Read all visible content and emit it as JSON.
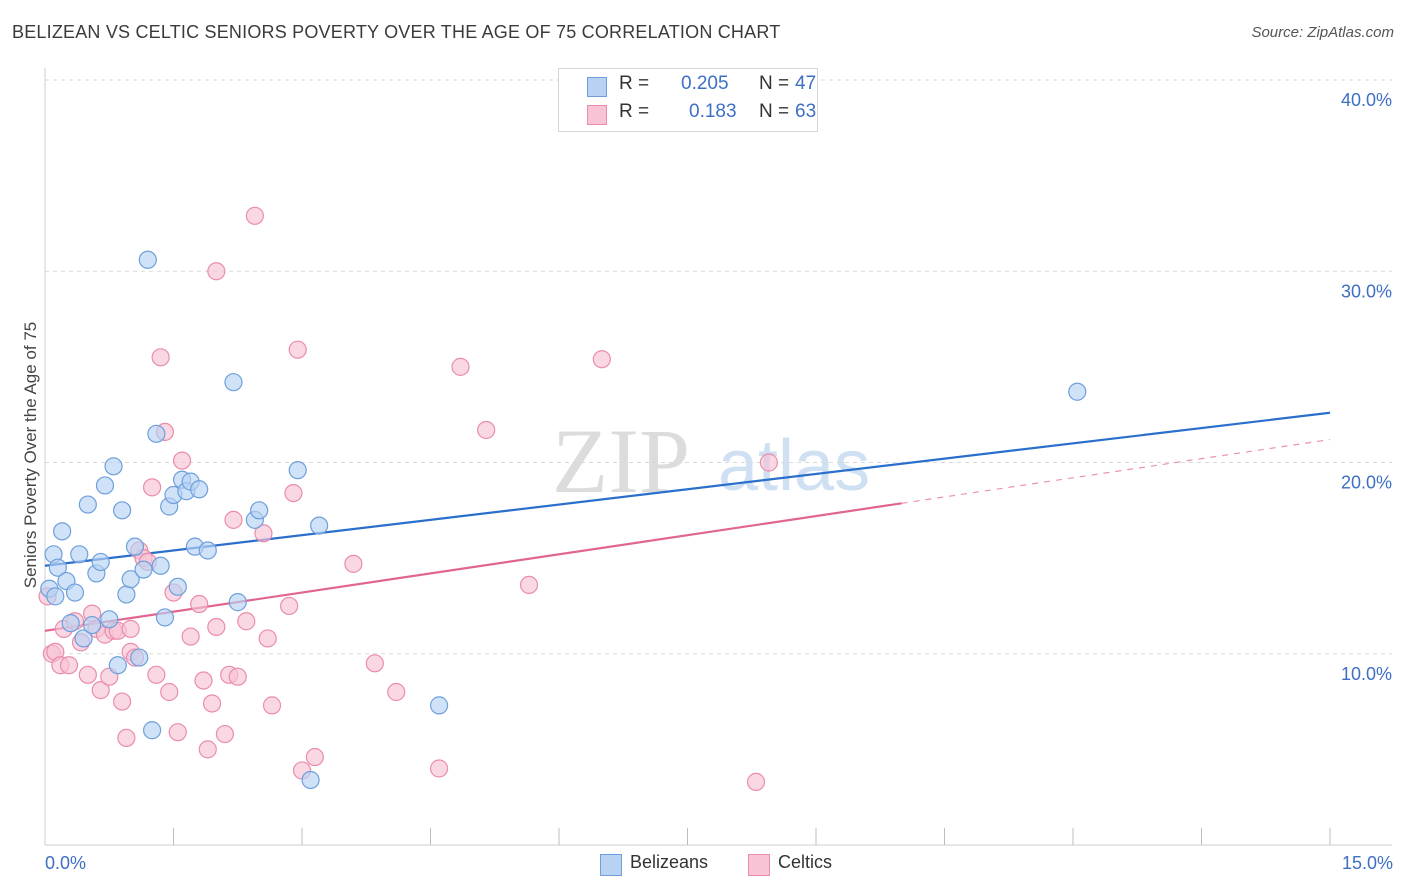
{
  "title": "BELIZEAN VS CELTIC SENIORS POVERTY OVER THE AGE OF 75 CORRELATION CHART",
  "source": "Source: ZipAtlas.com",
  "watermark": {
    "zip": "ZIP",
    "atlas": "atlas"
  },
  "legend": {
    "r_label": "R =",
    "n_label": "N =",
    "belizeans": {
      "r": "0.205",
      "n": "47"
    },
    "celtics": {
      "r": "0.183",
      "n": "63"
    }
  },
  "colors": {
    "blue_fill": "#b7d2f3",
    "blue_stroke": "#6e9fdc",
    "blue_line": "#2b6fcd",
    "pink_fill": "#f8c3d4",
    "pink_stroke": "#ea8daa",
    "pink_line": "#e06592",
    "axis_text": "#3d6fc4",
    "grid": "#d9d9d9"
  },
  "chart_data": {
    "type": "scatter",
    "title": "BELIZEAN VS CELTIC SENIORS POVERTY OVER THE AGE OF 75 CORRELATION CHART",
    "xlabel": "",
    "ylabel": "Seniors Poverty Over the Age of 75",
    "xlim": [
      0,
      15
    ],
    "ylim": [
      0,
      40
    ],
    "x_tick_labels": [
      "0.0%",
      "15.0%"
    ],
    "y_ticks": [
      10,
      20,
      30,
      40
    ],
    "y_tick_labels": [
      "10.0%",
      "20.0%",
      "30.0%",
      "40.0%"
    ],
    "legend_bottom": [
      "Belizeans",
      "Celtics"
    ],
    "series": [
      {
        "name": "Belizeans",
        "trend": {
          "x": [
            0,
            15
          ],
          "y": [
            14.6,
            22.6
          ],
          "solid_until": 15
        },
        "points": [
          [
            0.05,
            13.4
          ],
          [
            0.1,
            15.2
          ],
          [
            0.15,
            14.5
          ],
          [
            0.2,
            16.4
          ],
          [
            0.25,
            13.8
          ],
          [
            0.3,
            11.6
          ],
          [
            0.35,
            13.2
          ],
          [
            0.4,
            15.2
          ],
          [
            0.45,
            10.8
          ],
          [
            0.5,
            17.8
          ],
          [
            0.55,
            11.5
          ],
          [
            0.6,
            14.2
          ],
          [
            0.65,
            14.8
          ],
          [
            0.7,
            18.8
          ],
          [
            0.75,
            11.8
          ],
          [
            0.8,
            19.8
          ],
          [
            0.85,
            9.4
          ],
          [
            0.9,
            17.5
          ],
          [
            0.95,
            13.1
          ],
          [
            1.0,
            13.9
          ],
          [
            1.05,
            15.6
          ],
          [
            1.1,
            9.8
          ],
          [
            1.15,
            14.4
          ],
          [
            1.2,
            30.6
          ],
          [
            1.25,
            6.0
          ],
          [
            1.3,
            21.5
          ],
          [
            1.35,
            14.6
          ],
          [
            1.4,
            11.9
          ],
          [
            1.45,
            17.7
          ],
          [
            1.5,
            18.3
          ],
          [
            1.55,
            13.5
          ],
          [
            1.6,
            19.1
          ],
          [
            1.65,
            18.5
          ],
          [
            1.7,
            19.0
          ],
          [
            1.75,
            15.6
          ],
          [
            1.8,
            18.6
          ],
          [
            1.9,
            15.4
          ],
          [
            2.2,
            24.2
          ],
          [
            2.25,
            12.7
          ],
          [
            2.45,
            17.0
          ],
          [
            2.5,
            17.5
          ],
          [
            2.95,
            19.6
          ],
          [
            3.1,
            3.4
          ],
          [
            3.2,
            16.7
          ],
          [
            4.6,
            7.3
          ],
          [
            12.05,
            23.7
          ],
          [
            0.12,
            13.0
          ]
        ]
      },
      {
        "name": "Celtics",
        "trend": {
          "x": [
            0,
            15
          ],
          "y": [
            11.2,
            21.2
          ],
          "solid_until": 10.0
        },
        "points": [
          [
            0.03,
            13.0
          ],
          [
            0.08,
            10.0
          ],
          [
            0.12,
            10.1
          ],
          [
            0.18,
            9.4
          ],
          [
            0.22,
            11.3
          ],
          [
            0.28,
            9.4
          ],
          [
            0.35,
            11.7
          ],
          [
            0.42,
            10.6
          ],
          [
            0.5,
            8.9
          ],
          [
            0.55,
            12.1
          ],
          [
            0.6,
            11.3
          ],
          [
            0.65,
            8.1
          ],
          [
            0.7,
            11.0
          ],
          [
            0.75,
            8.8
          ],
          [
            0.8,
            11.2
          ],
          [
            0.85,
            11.2
          ],
          [
            0.9,
            7.5
          ],
          [
            0.95,
            5.6
          ],
          [
            1.0,
            10.1
          ],
          [
            1.05,
            9.8
          ],
          [
            1.1,
            15.4
          ],
          [
            1.15,
            15.0
          ],
          [
            1.2,
            14.8
          ],
          [
            1.25,
            18.7
          ],
          [
            1.3,
            8.9
          ],
          [
            1.35,
            25.5
          ],
          [
            1.4,
            21.6
          ],
          [
            1.45,
            8.0
          ],
          [
            1.5,
            13.2
          ],
          [
            1.55,
            5.9
          ],
          [
            1.6,
            20.1
          ],
          [
            1.7,
            10.9
          ],
          [
            1.8,
            12.6
          ],
          [
            1.85,
            8.6
          ],
          [
            1.9,
            5.0
          ],
          [
            1.95,
            7.4
          ],
          [
            2.0,
            11.4
          ],
          [
            2.1,
            5.8
          ],
          [
            2.15,
            8.9
          ],
          [
            2.2,
            17.0
          ],
          [
            2.25,
            8.8
          ],
          [
            2.35,
            11.7
          ],
          [
            2.45,
            32.9
          ],
          [
            2.55,
            16.3
          ],
          [
            2.6,
            10.8
          ],
          [
            2.65,
            7.3
          ],
          [
            2.85,
            12.5
          ],
          [
            2.9,
            18.4
          ],
          [
            2.95,
            25.9
          ],
          [
            3.0,
            3.9
          ],
          [
            3.15,
            4.6
          ],
          [
            3.6,
            14.7
          ],
          [
            3.85,
            9.5
          ],
          [
            4.1,
            8.0
          ],
          [
            4.6,
            4.0
          ],
          [
            4.85,
            25.0
          ],
          [
            5.15,
            21.7
          ],
          [
            5.65,
            13.6
          ],
          [
            6.5,
            25.4
          ],
          [
            8.3,
            3.3
          ],
          [
            8.45,
            20.0
          ],
          [
            2.0,
            30.0
          ],
          [
            1.0,
            11.3
          ]
        ]
      }
    ]
  }
}
